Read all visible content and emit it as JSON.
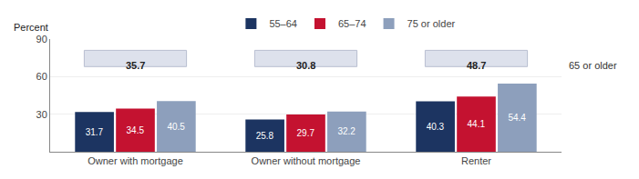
{
  "chart_data": {
    "type": "bar",
    "ylabel": "Percent",
    "categories": [
      "Owner with mortgage",
      "Owner without mortgage",
      "Renter"
    ],
    "series": [
      {
        "name": "55–64",
        "color": "#1c3461",
        "values": [
          31.7,
          25.8,
          40.3
        ]
      },
      {
        "name": "65–74",
        "color": "#c41230",
        "values": [
          34.5,
          29.7,
          44.1
        ]
      },
      {
        "name": "75 or older",
        "color": "#8d9fbc",
        "values": [
          40.5,
          32.2,
          54.4
        ]
      }
    ],
    "summary": {
      "name": "65 or older",
      "color": "#dde1ec",
      "values": [
        35.7,
        30.8,
        48.7
      ]
    },
    "ylim": [
      0,
      90
    ],
    "yticks": [
      30,
      60,
      90
    ],
    "grid": true,
    "legend": "top",
    "data_labels": true
  }
}
